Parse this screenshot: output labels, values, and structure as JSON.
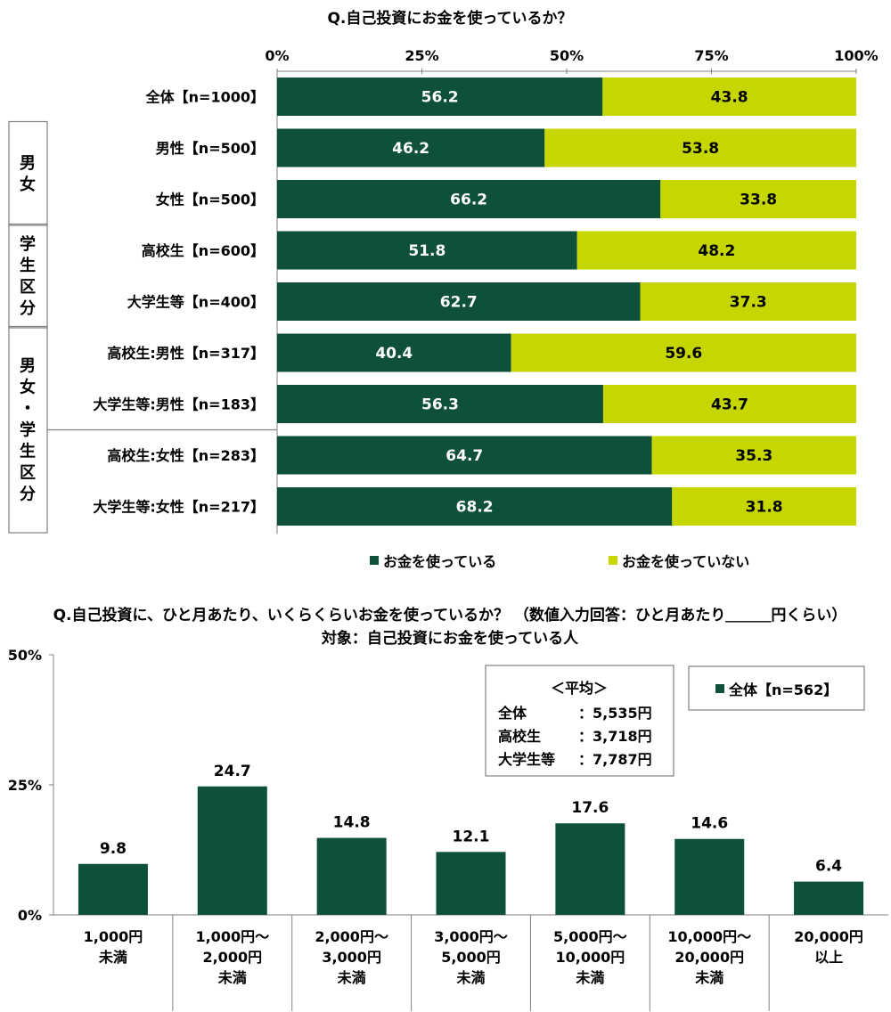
{
  "colors": {
    "used": "#0f5038",
    "not_used": "#c5d600",
    "axis": "#808080",
    "box_border": "#808080"
  },
  "chart_data": [
    {
      "type": "bar",
      "orientation": "horizontal-stacked",
      "title": "Q.自己投資にお金を使っているか？",
      "xlim": [
        0,
        100
      ],
      "x_ticks": [
        "0%",
        "25%",
        "50%",
        "75%",
        "100%"
      ],
      "grid": false,
      "legend_position": "bottom",
      "groups": [
        {
          "label": "",
          "categories": [
            0
          ]
        },
        {
          "label": "男女",
          "categories": [
            1,
            2
          ]
        },
        {
          "label": "学生区分",
          "categories": [
            3,
            4
          ]
        },
        {
          "label": "男女・学生区分",
          "categories": [
            5,
            6,
            7,
            8
          ]
        }
      ],
      "categories": [
        "全体【n=1000】",
        "男性【n=500】",
        "女性【n=500】",
        "高校生【n=600】",
        "大学生等【n=400】",
        "高校生:男性【n=317】",
        "大学生等:男性【n=183】",
        "高校生:女性【n=283】",
        "大学生等:女性【n=217】"
      ],
      "series": [
        {
          "name": "お金を使っている",
          "values": [
            56.2,
            46.2,
            66.2,
            51.8,
            62.7,
            40.4,
            56.3,
            64.7,
            68.2
          ]
        },
        {
          "name": "お金を使っていない",
          "values": [
            43.8,
            53.8,
            33.8,
            48.2,
            37.3,
            59.6,
            43.7,
            35.3,
            31.8
          ]
        }
      ]
    },
    {
      "type": "bar",
      "title": "Q.自己投資に、ひと月あたり、いくらくらいお金を使っているか？ （数値入力回答：ひと月あたり＿＿＿円くらい）",
      "subtitle": "対象：自己投資にお金を使っている人",
      "ylim": [
        0,
        50
      ],
      "y_ticks": [
        "0%",
        "25%",
        "50%"
      ],
      "grid": false,
      "legend_position": "top-right",
      "categories": [
        "1,000円\n未満",
        "1,000円～\n2,000円\n未満",
        "2,000円～\n3,000円\n未満",
        "3,000円～\n5,000円\n未満",
        "5,000円～\n10,000円\n未満",
        "10,000円～\n20,000円\n未満",
        "20,000円\n以上"
      ],
      "series": [
        {
          "name": "全体【n=562】",
          "values": [
            9.8,
            24.7,
            14.8,
            12.1,
            17.6,
            14.6,
            6.4
          ]
        }
      ],
      "average_box": {
        "title": "＜平均＞",
        "rows": [
          {
            "label": "全体",
            "value": "：5,535円"
          },
          {
            "label": "高校生",
            "value": "：3,718円"
          },
          {
            "label": "大学生等",
            "value": "：7,787円"
          }
        ]
      }
    }
  ]
}
